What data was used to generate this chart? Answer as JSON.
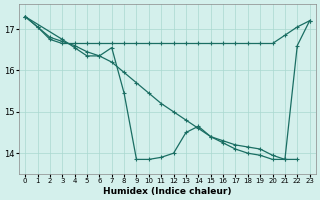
{
  "xlabel": "Humidex (Indice chaleur)",
  "bg_color": "#d4f0ec",
  "grid_color": "#aad8d0",
  "line_color": "#1a6e63",
  "xlim": [
    -0.5,
    23.5
  ],
  "ylim": [
    13.5,
    17.6
  ],
  "yticks": [
    14,
    15,
    16,
    17
  ],
  "xticks": [
    0,
    1,
    2,
    3,
    4,
    5,
    6,
    7,
    8,
    9,
    10,
    11,
    12,
    13,
    14,
    15,
    16,
    17,
    18,
    19,
    20,
    21,
    22,
    23
  ],
  "curve1_x": [
    0,
    1,
    2,
    3,
    4,
    5,
    6,
    7,
    8,
    9,
    10,
    11,
    12,
    13,
    14,
    15,
    16,
    17,
    18,
    19,
    20,
    21,
    22,
    23
  ],
  "curve1_y": [
    17.3,
    17.05,
    16.75,
    16.65,
    16.65,
    16.65,
    16.65,
    16.65,
    16.65,
    16.65,
    16.65,
    16.65,
    16.65,
    16.65,
    16.65,
    16.65,
    16.65,
    16.65,
    16.65,
    16.65,
    16.65,
    16.85,
    17.05,
    17.2
  ],
  "curve2_x": [
    0,
    1,
    2,
    3,
    4,
    5,
    6,
    7,
    8,
    9,
    10,
    11,
    12,
    13,
    14,
    15,
    16,
    17,
    18,
    19,
    20,
    21,
    22
  ],
  "curve2_y": [
    17.3,
    17.05,
    16.8,
    16.7,
    16.6,
    16.45,
    16.35,
    16.2,
    15.95,
    15.7,
    15.45,
    15.2,
    15.0,
    14.8,
    14.6,
    14.4,
    14.25,
    14.1,
    14.0,
    13.95,
    13.85,
    13.85,
    13.85
  ],
  "curve3_x": [
    0,
    3,
    4,
    5,
    6,
    7,
    8,
    9,
    10,
    11,
    12,
    13,
    14,
    15,
    16,
    17,
    18,
    19,
    20,
    21,
    22,
    23
  ],
  "curve3_y": [
    17.3,
    16.75,
    16.55,
    16.35,
    16.35,
    16.55,
    15.45,
    13.85,
    13.85,
    13.9,
    14.0,
    14.5,
    14.65,
    14.4,
    14.3,
    14.2,
    14.15,
    14.1,
    13.95,
    13.85,
    16.6,
    17.2
  ]
}
